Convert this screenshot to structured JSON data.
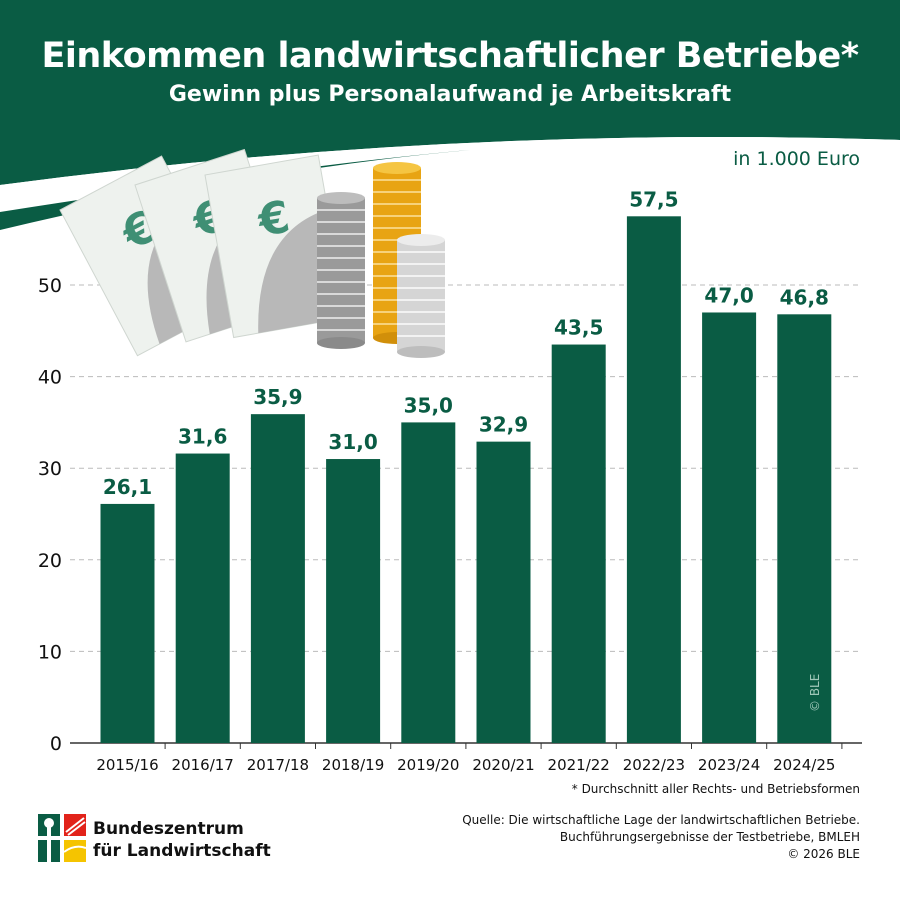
{
  "header": {
    "title": "Einkommen landwirtschaftlicher Betriebe*",
    "subtitle": "Gewinn plus Personalaufwand je Arbeitskraft"
  },
  "unit_label": "in 1.000 Euro",
  "footnote": "* Durchschnitt aller Rechts- und Betriebsformen",
  "source": {
    "line1": "Quelle: Die wirtschaftliche Lage der landwirtschaftlichen Betriebe.",
    "line2": "Buchführungsergebnisse der Testbetriebe, BMLEH",
    "line3": "© 2026 BLE"
  },
  "organization": {
    "line1": "Bundeszentrum",
    "line2": "für Landwirtschaft"
  },
  "watermark": "© BLE",
  "colors": {
    "brand_green": "#0a5c44",
    "background": "#ffffff",
    "grid": "#bbbbbb",
    "coin_gold": "#f0b429",
    "coin_silver": "#c8c8c8"
  },
  "illustration_icons": [
    "euro-banknote-icon",
    "coin-stack-icon"
  ],
  "chart_data": {
    "type": "bar",
    "title": "Einkommen landwirtschaftlicher Betriebe*",
    "subtitle": "Gewinn plus Personalaufwand je Arbeitskraft",
    "ylabel": "in 1.000 Euro",
    "xlabel": "",
    "categories": [
      "2015/16",
      "2016/17",
      "2017/18",
      "2018/19",
      "2019/20",
      "2020/21",
      "2021/22",
      "2022/23",
      "2023/24",
      "2024/25"
    ],
    "values": [
      26.1,
      31.6,
      35.9,
      31.0,
      35.0,
      32.9,
      43.5,
      57.5,
      47.0,
      46.8
    ],
    "value_labels": [
      "26,1",
      "31,6",
      "35,9",
      "31,0",
      "35,0",
      "32,9",
      "43,5",
      "57,5",
      "47,0",
      "46,8"
    ],
    "ylim": [
      0,
      60
    ],
    "yticks": [
      0,
      10,
      20,
      30,
      40,
      50
    ],
    "grid": true,
    "legend": "none"
  }
}
